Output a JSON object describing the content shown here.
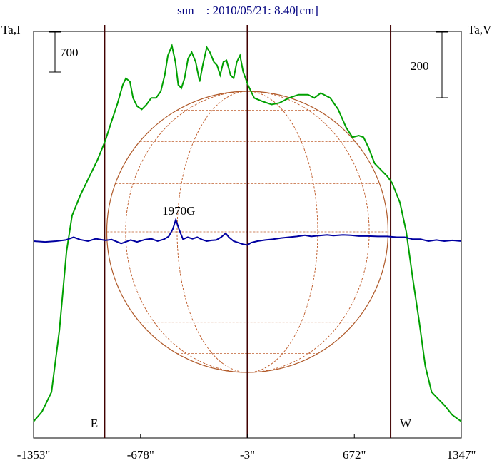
{
  "chart_data": {
    "type": "line",
    "title": "sun    : 2010/05/21: 8.40[cm]",
    "ylabel_left": "Ta,I",
    "ylabel_right": "Ta,V",
    "x_unit": "arcsec",
    "xlim": [
      -1353,
      1347
    ],
    "x_ticks": [
      -1353,
      -678,
      -3,
      672,
      1347
    ],
    "x_tick_labels": [
      "-1353\"",
      "-678\"",
      "-3\"",
      "672\"",
      "1347\""
    ],
    "scale_bar_I": "700",
    "scale_bar_V": "200",
    "limb_labels": {
      "east": "E",
      "west": "W"
    },
    "limb_lines_arcsec": [
      -905,
      -3,
      901
    ],
    "annotation": {
      "text": "1970G",
      "x": -455
    },
    "series": [
      {
        "key": "I",
        "color": "#00a000",
        "points": [
          [
            -1353,
            0.02
          ],
          [
            -1300,
            0.05
          ],
          [
            -1240,
            0.11
          ],
          [
            -1190,
            0.3
          ],
          [
            -1145,
            0.54
          ],
          [
            -1110,
            0.65
          ],
          [
            -1060,
            0.71
          ],
          [
            -1000,
            0.77
          ],
          [
            -950,
            0.82
          ],
          [
            -900,
            0.88
          ],
          [
            -860,
            0.94
          ],
          [
            -825,
            0.99
          ],
          [
            -790,
            1.05
          ],
          [
            -770,
            1.07
          ],
          [
            -745,
            1.06
          ],
          [
            -725,
            1.01
          ],
          [
            -700,
            0.985
          ],
          [
            -670,
            0.975
          ],
          [
            -640,
            0.99
          ],
          [
            -610,
            1.01
          ],
          [
            -580,
            1.01
          ],
          [
            -550,
            1.03
          ],
          [
            -525,
            1.08
          ],
          [
            -505,
            1.14
          ],
          [
            -480,
            1.17
          ],
          [
            -458,
            1.12
          ],
          [
            -440,
            1.05
          ],
          [
            -420,
            1.04
          ],
          [
            -400,
            1.07
          ],
          [
            -378,
            1.13
          ],
          [
            -355,
            1.15
          ],
          [
            -330,
            1.12
          ],
          [
            -305,
            1.06
          ],
          [
            -285,
            1.11
          ],
          [
            -260,
            1.165
          ],
          [
            -240,
            1.15
          ],
          [
            -215,
            1.12
          ],
          [
            -195,
            1.11
          ],
          [
            -175,
            1.08
          ],
          [
            -155,
            1.12
          ],
          [
            -135,
            1.125
          ],
          [
            -110,
            1.08
          ],
          [
            -90,
            1.07
          ],
          [
            -70,
            1.12
          ],
          [
            -50,
            1.14
          ],
          [
            -30,
            1.09
          ],
          [
            0,
            1.05
          ],
          [
            40,
            1.01
          ],
          [
            90,
            1.0
          ],
          [
            150,
            0.99
          ],
          [
            200,
            0.995
          ],
          [
            260,
            1.01
          ],
          [
            320,
            1.02
          ],
          [
            380,
            1.02
          ],
          [
            420,
            1.01
          ],
          [
            460,
            1.025
          ],
          [
            520,
            1.01
          ],
          [
            570,
            0.975
          ],
          [
            620,
            0.92
          ],
          [
            660,
            0.89
          ],
          [
            700,
            0.895
          ],
          [
            730,
            0.89
          ],
          [
            760,
            0.86
          ],
          [
            800,
            0.81
          ],
          [
            840,
            0.79
          ],
          [
            880,
            0.77
          ],
          [
            910,
            0.75
          ],
          [
            960,
            0.69
          ],
          [
            1000,
            0.6
          ],
          [
            1040,
            0.46
          ],
          [
            1080,
            0.33
          ],
          [
            1120,
            0.19
          ],
          [
            1160,
            0.11
          ],
          [
            1200,
            0.09
          ],
          [
            1240,
            0.07
          ],
          [
            1290,
            0.04
          ],
          [
            1347,
            0.02
          ]
        ]
      },
      {
        "key": "V",
        "color": "#0000a0",
        "points": [
          [
            -1353,
            0.0
          ],
          [
            -1280,
            -0.002
          ],
          [
            -1210,
            0.0
          ],
          [
            -1150,
            0.003
          ],
          [
            -1100,
            0.01
          ],
          [
            -1060,
            0.004
          ],
          [
            -1010,
            0.0
          ],
          [
            -960,
            0.006
          ],
          [
            -900,
            0.002
          ],
          [
            -860,
            0.004
          ],
          [
            -800,
            -0.006
          ],
          [
            -740,
            0.003
          ],
          [
            -700,
            -0.002
          ],
          [
            -650,
            0.004
          ],
          [
            -610,
            0.006
          ],
          [
            -570,
            0.0
          ],
          [
            -530,
            0.005
          ],
          [
            -500,
            0.012
          ],
          [
            -475,
            0.03
          ],
          [
            -455,
            0.055
          ],
          [
            -435,
            0.03
          ],
          [
            -410,
            0.005
          ],
          [
            -380,
            0.01
          ],
          [
            -350,
            0.006
          ],
          [
            -320,
            0.01
          ],
          [
            -290,
            0.004
          ],
          [
            -260,
            0.0
          ],
          [
            -230,
            0.002
          ],
          [
            -200,
            0.003
          ],
          [
            -170,
            0.01
          ],
          [
            -140,
            0.02
          ],
          [
            -120,
            0.01
          ],
          [
            -90,
            0.0
          ],
          [
            -60,
            -0.004
          ],
          [
            -30,
            -0.008
          ],
          [
            -3,
            -0.01
          ],
          [
            20,
            -0.004
          ],
          [
            60,
            0.0
          ],
          [
            110,
            0.003
          ],
          [
            160,
            0.005
          ],
          [
            210,
            0.008
          ],
          [
            260,
            0.01
          ],
          [
            310,
            0.012
          ],
          [
            360,
            0.015
          ],
          [
            400,
            0.012
          ],
          [
            450,
            0.014
          ],
          [
            500,
            0.016
          ],
          [
            540,
            0.014
          ],
          [
            600,
            0.016
          ],
          [
            650,
            0.015
          ],
          [
            700,
            0.013
          ],
          [
            760,
            0.013
          ],
          [
            820,
            0.012
          ],
          [
            880,
            0.012
          ],
          [
            940,
            0.01
          ],
          [
            990,
            0.01
          ],
          [
            1040,
            0.005
          ],
          [
            1090,
            0.005
          ],
          [
            1140,
            0.0
          ],
          [
            1190,
            0.003
          ],
          [
            1240,
            0.0
          ],
          [
            1290,
            0.002
          ],
          [
            1347,
            0.0
          ]
        ]
      }
    ]
  }
}
